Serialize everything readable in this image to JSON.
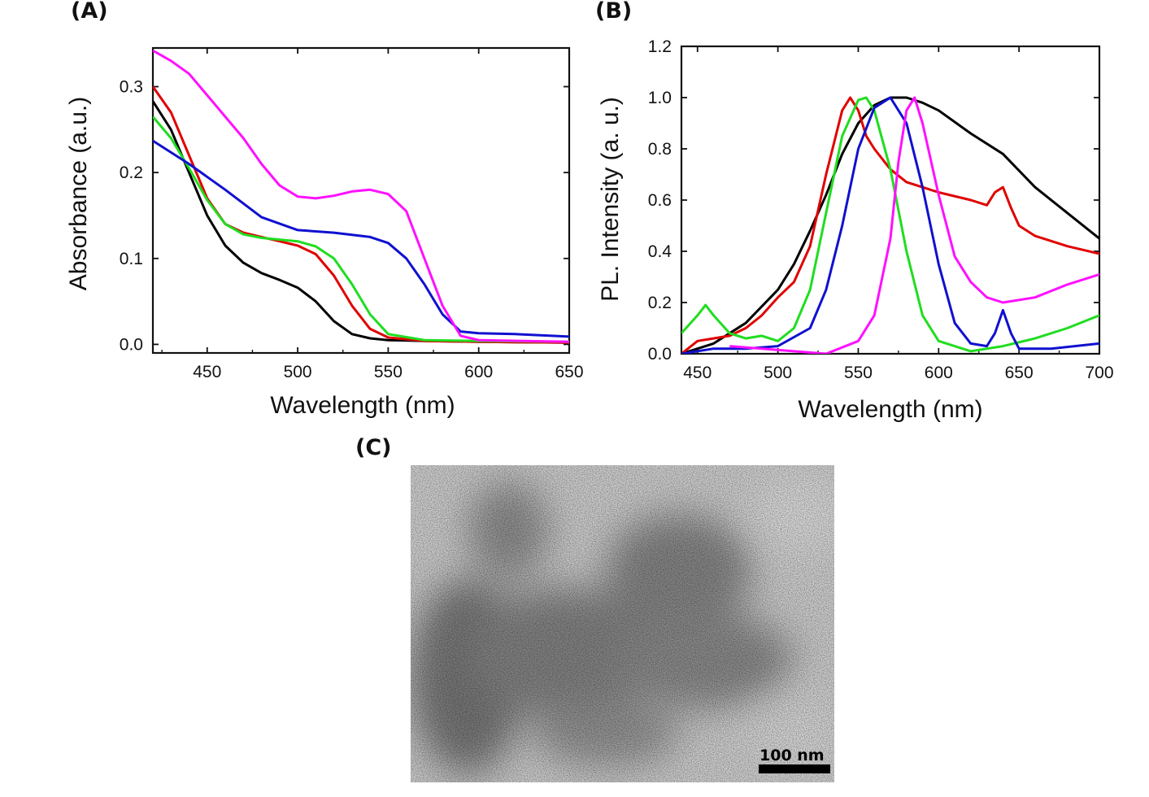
{
  "panels": {
    "a_label": "(A)",
    "b_label": "(B)",
    "c_label": "(C)"
  },
  "chart_data": [
    {
      "panel": "(A)",
      "type": "line",
      "xlabel": "Wavelength (nm)",
      "ylabel": "Absorbance (a.u.)",
      "xlim": [
        420,
        650
      ],
      "ylim": [
        -0.01,
        0.345
      ],
      "xticks": [
        450,
        500,
        550,
        600,
        650
      ],
      "yticks": [
        0.0,
        0.1,
        0.2,
        0.3
      ],
      "ytick_labels": [
        "0.0",
        "0.1",
        "0.2",
        "0.3"
      ],
      "series": [
        {
          "color": "#000000",
          "x": [
            420,
            430,
            440,
            450,
            460,
            470,
            480,
            490,
            500,
            510,
            520,
            530,
            540,
            550,
            570,
            600,
            650
          ],
          "y": [
            0.283,
            0.25,
            0.2,
            0.15,
            0.115,
            0.095,
            0.083,
            0.075,
            0.066,
            0.05,
            0.027,
            0.012,
            0.007,
            0.005,
            0.004,
            0.003,
            0.002
          ]
        },
        {
          "color": "#e00000",
          "x": [
            420,
            430,
            440,
            450,
            460,
            470,
            480,
            490,
            500,
            510,
            520,
            530,
            540,
            550,
            570,
            600,
            650
          ],
          "y": [
            0.3,
            0.27,
            0.22,
            0.17,
            0.14,
            0.13,
            0.125,
            0.12,
            0.115,
            0.105,
            0.08,
            0.045,
            0.018,
            0.008,
            0.004,
            0.003,
            0.002
          ]
        },
        {
          "color": "#20dd20",
          "x": [
            420,
            430,
            440,
            450,
            460,
            470,
            480,
            490,
            500,
            510,
            520,
            530,
            540,
            550,
            570,
            600,
            650
          ],
          "y": [
            0.265,
            0.24,
            0.205,
            0.168,
            0.14,
            0.128,
            0.124,
            0.122,
            0.12,
            0.114,
            0.1,
            0.07,
            0.035,
            0.012,
            0.005,
            0.004,
            0.003
          ]
        },
        {
          "color": "#1010d0",
          "x": [
            420,
            440,
            460,
            480,
            500,
            520,
            540,
            550,
            560,
            570,
            580,
            590,
            600,
            620,
            650
          ],
          "y": [
            0.237,
            0.21,
            0.18,
            0.148,
            0.133,
            0.13,
            0.125,
            0.118,
            0.1,
            0.07,
            0.035,
            0.015,
            0.013,
            0.012,
            0.009
          ]
        },
        {
          "color": "#ff10ff",
          "x": [
            420,
            430,
            440,
            450,
            460,
            470,
            480,
            490,
            500,
            510,
            520,
            530,
            540,
            550,
            560,
            570,
            580,
            590,
            600,
            650
          ],
          "y": [
            0.342,
            0.33,
            0.315,
            0.29,
            0.265,
            0.24,
            0.21,
            0.185,
            0.172,
            0.17,
            0.173,
            0.178,
            0.18,
            0.175,
            0.155,
            0.1,
            0.045,
            0.01,
            0.005,
            0.003
          ]
        }
      ]
    },
    {
      "panel": "(B)",
      "type": "line",
      "xlabel": "Wavelength (nm)",
      "ylabel": "PL. Intensity (a. u.)",
      "xlim": [
        440,
        700
      ],
      "ylim": [
        0,
        1.2
      ],
      "xticks": [
        450,
        500,
        550,
        600,
        650,
        700
      ],
      "yticks": [
        0.0,
        0.2,
        0.4,
        0.6,
        0.8,
        1.0,
        1.2
      ],
      "ytick_labels": [
        "0.0",
        "0.2",
        "0.4",
        "0.6",
        "0.8",
        "1.0",
        "1.2"
      ],
      "series": [
        {
          "color": "#000000",
          "x": [
            440,
            460,
            480,
            500,
            510,
            520,
            530,
            540,
            550,
            560,
            570,
            580,
            590,
            600,
            620,
            640,
            660,
            680,
            700
          ],
          "y": [
            0.0,
            0.04,
            0.12,
            0.25,
            0.35,
            0.48,
            0.62,
            0.78,
            0.9,
            0.97,
            1.0,
            1.0,
            0.98,
            0.95,
            0.86,
            0.78,
            0.65,
            0.55,
            0.45
          ]
        },
        {
          "color": "#e00000",
          "x": [
            440,
            450,
            460,
            470,
            480,
            490,
            500,
            510,
            520,
            530,
            540,
            545,
            550,
            555,
            560,
            570,
            580,
            600,
            620,
            630,
            635,
            640,
            645,
            650,
            660,
            680,
            700
          ],
          "y": [
            0.0,
            0.05,
            0.06,
            0.07,
            0.1,
            0.15,
            0.22,
            0.28,
            0.42,
            0.7,
            0.95,
            1.0,
            0.95,
            0.85,
            0.8,
            0.72,
            0.67,
            0.63,
            0.6,
            0.58,
            0.63,
            0.65,
            0.57,
            0.5,
            0.46,
            0.42,
            0.39
          ]
        },
        {
          "color": "#20dd20",
          "x": [
            440,
            450,
            455,
            460,
            470,
            480,
            490,
            500,
            510,
            520,
            530,
            540,
            550,
            555,
            560,
            570,
            580,
            590,
            600,
            620,
            640,
            660,
            680,
            700
          ],
          "y": [
            0.08,
            0.15,
            0.19,
            0.15,
            0.08,
            0.06,
            0.07,
            0.05,
            0.1,
            0.25,
            0.55,
            0.85,
            0.99,
            1.0,
            0.95,
            0.72,
            0.4,
            0.15,
            0.05,
            0.01,
            0.03,
            0.06,
            0.1,
            0.15
          ]
        },
        {
          "color": "#1010d0",
          "x": [
            440,
            460,
            480,
            500,
            520,
            530,
            540,
            550,
            560,
            570,
            580,
            590,
            600,
            610,
            620,
            630,
            635,
            640,
            645,
            650,
            670,
            700
          ],
          "y": [
            0.0,
            0.02,
            0.02,
            0.03,
            0.1,
            0.25,
            0.5,
            0.8,
            0.96,
            1.0,
            0.9,
            0.65,
            0.35,
            0.12,
            0.04,
            0.03,
            0.08,
            0.17,
            0.08,
            0.02,
            0.02,
            0.04
          ]
        },
        {
          "color": "#ff10ff",
          "x": [
            470,
            490,
            510,
            530,
            550,
            560,
            570,
            575,
            580,
            585,
            590,
            600,
            610,
            620,
            630,
            640,
            660,
            680,
            700
          ],
          "y": [
            0.03,
            0.02,
            0.01,
            0.0,
            0.05,
            0.15,
            0.45,
            0.75,
            0.95,
            1.0,
            0.9,
            0.62,
            0.38,
            0.28,
            0.22,
            0.2,
            0.22,
            0.27,
            0.31
          ]
        }
      ]
    }
  ],
  "tem": {
    "scale_bar_label": "100 nm"
  }
}
